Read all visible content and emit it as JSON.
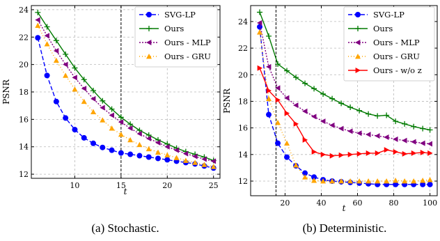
{
  "figure": {
    "captions": [
      "(a) Stochastic.",
      "(b) Deterministic."
    ]
  },
  "chart_data": [
    {
      "type": "line",
      "subplot": "a",
      "xlabel": "t",
      "ylabel": "PSNR",
      "xlim": [
        5.3,
        25.7
      ],
      "ylim": [
        11.7,
        24.3
      ],
      "xticks": [
        10,
        15,
        20,
        25
      ],
      "yticks": [
        12,
        14,
        16,
        18,
        20,
        22,
        24
      ],
      "grid": true,
      "legend": "top-right",
      "vline": 15,
      "series": [
        {
          "name": "SVG-LP",
          "color": "#0000ff",
          "marker": "circle",
          "dash": "6,3",
          "x": [
            6,
            7,
            8,
            9,
            10,
            11,
            12,
            13,
            14,
            15,
            16,
            17,
            18,
            19,
            20,
            21,
            22,
            23,
            24,
            25
          ],
          "values": [
            21.95,
            19.2,
            17.3,
            16.1,
            15.25,
            14.65,
            14.25,
            13.95,
            13.75,
            13.55,
            13.45,
            13.35,
            13.25,
            13.15,
            13.05,
            12.95,
            12.85,
            12.75,
            12.6,
            12.45
          ]
        },
        {
          "name": "Ours",
          "color": "#007a00",
          "marker": "plus",
          "dash": "",
          "x": [
            6,
            7,
            8,
            9,
            10,
            11,
            12,
            13,
            14,
            15,
            16,
            17,
            18,
            19,
            20,
            21,
            22,
            23,
            24,
            25
          ],
          "values": [
            23.8,
            22.75,
            21.75,
            20.75,
            19.75,
            18.9,
            18.1,
            17.35,
            16.75,
            16.15,
            15.65,
            15.2,
            14.85,
            14.5,
            14.2,
            13.9,
            13.65,
            13.45,
            13.25,
            13.0
          ]
        },
        {
          "name": "Ours - MLP",
          "color": "#800080",
          "marker": "triangle-left",
          "dash": "2,2",
          "x": [
            6,
            7,
            8,
            9,
            10,
            11,
            12,
            13,
            14,
            15,
            16,
            17,
            18,
            19,
            20,
            21,
            22,
            23,
            24,
            25
          ],
          "values": [
            23.25,
            22.1,
            21.0,
            20.0,
            19.05,
            18.25,
            17.5,
            16.85,
            16.3,
            15.8,
            15.35,
            14.95,
            14.6,
            14.3,
            14.0,
            13.75,
            13.5,
            13.3,
            13.1,
            12.95
          ]
        },
        {
          "name": "Ours - GRU",
          "color": "#ffa500",
          "marker": "triangle-up",
          "dash": "1,3",
          "x": [
            6,
            7,
            8,
            9,
            10,
            11,
            12,
            13,
            14,
            15,
            16,
            17,
            18,
            19,
            20,
            21,
            22,
            23,
            24,
            25
          ],
          "values": [
            22.85,
            21.5,
            20.3,
            19.2,
            18.2,
            17.3,
            16.55,
            15.95,
            15.35,
            14.9,
            14.5,
            14.15,
            13.85,
            13.6,
            13.4,
            13.2,
            13.0,
            12.85,
            12.7,
            12.55
          ]
        }
      ]
    },
    {
      "type": "line",
      "subplot": "b",
      "xlabel": "t",
      "ylabel": "PSNR",
      "xlim": [
        1,
        104
      ],
      "ylim": [
        10.9,
        25.2
      ],
      "xticks": [
        20,
        40,
        60,
        80,
        100
      ],
      "yticks": [
        12,
        14,
        16,
        18,
        20,
        22,
        24
      ],
      "grid": true,
      "legend": "top-right",
      "vline": 15,
      "series": [
        {
          "name": "SVG-LP",
          "color": "#0000ff",
          "marker": "circle",
          "dash": "6,3",
          "x": [
            6,
            11,
            16,
            21,
            26,
            31,
            36,
            41,
            46,
            51,
            56,
            61,
            66,
            71,
            76,
            81,
            86,
            91,
            96,
            100
          ],
          "values": [
            23.6,
            17.0,
            14.85,
            13.8,
            13.15,
            12.6,
            12.3,
            12.1,
            12.0,
            11.95,
            11.9,
            11.85,
            11.8,
            11.75,
            11.75,
            11.75,
            11.75,
            11.75,
            11.75,
            11.75
          ]
        },
        {
          "name": "Ours",
          "color": "#007a00",
          "marker": "plus",
          "dash": "",
          "x": [
            6,
            11,
            16,
            21,
            26,
            31,
            36,
            41,
            46,
            51,
            56,
            61,
            66,
            71,
            76,
            81,
            86,
            91,
            96,
            100
          ],
          "values": [
            24.7,
            22.9,
            20.8,
            20.3,
            19.8,
            19.35,
            18.95,
            18.55,
            18.2,
            17.85,
            17.55,
            17.3,
            17.05,
            16.9,
            16.95,
            16.5,
            16.3,
            16.1,
            15.95,
            15.85
          ]
        },
        {
          "name": "Ours - MLP",
          "color": "#800080",
          "marker": "triangle-left",
          "dash": "2,2",
          "x": [
            6,
            11,
            16,
            21,
            26,
            31,
            36,
            41,
            46,
            51,
            56,
            61,
            66,
            71,
            76,
            81,
            86,
            91,
            96,
            100
          ],
          "values": [
            23.9,
            20.6,
            19.0,
            18.25,
            17.7,
            17.25,
            16.85,
            16.5,
            16.2,
            15.95,
            15.75,
            15.6,
            15.5,
            15.4,
            15.3,
            15.15,
            15.05,
            14.95,
            14.85,
            14.8
          ]
        },
        {
          "name": "Ours - GRU",
          "color": "#ffa500",
          "marker": "triangle-up",
          "dash": "1,3",
          "x": [
            6,
            11,
            16,
            21,
            26,
            31,
            36,
            41,
            46,
            51,
            56,
            61,
            66,
            71,
            76,
            81,
            86,
            91,
            96,
            100
          ],
          "values": [
            23.2,
            18.2,
            16.4,
            14.85,
            13.2,
            12.3,
            12.05,
            12.0,
            12.0,
            12.0,
            12.0,
            12.0,
            12.0,
            12.0,
            12.0,
            12.05,
            12.0,
            12.0,
            12.05,
            12.1
          ]
        },
        {
          "name": "Ours - w/o z",
          "color": "#ff0000",
          "marker": "triangle-right",
          "dash": "",
          "x": [
            6,
            11,
            16,
            21,
            26,
            31,
            36,
            41,
            46,
            51,
            56,
            61,
            66,
            71,
            76,
            81,
            86,
            91,
            96,
            100
          ],
          "values": [
            20.5,
            18.8,
            18.1,
            17.1,
            16.3,
            15.1,
            14.2,
            14.0,
            13.9,
            13.95,
            14.0,
            14.05,
            14.1,
            14.1,
            14.35,
            14.2,
            14.05,
            14.1,
            14.15,
            14.1
          ]
        }
      ]
    }
  ]
}
